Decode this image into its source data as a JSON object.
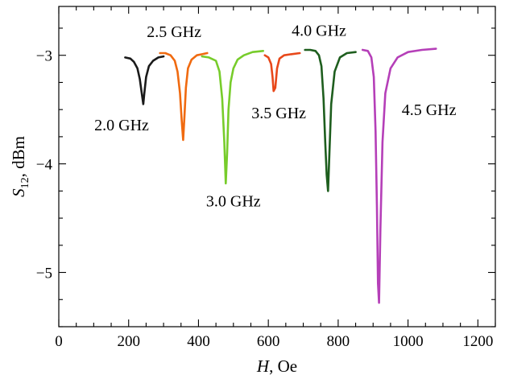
{
  "chart_data": {
    "type": "line",
    "xlabel": {
      "italic": "H",
      "rest": ", Oe"
    },
    "ylabel": {
      "italic": "S",
      "sub": "12",
      "rest": ", dBm"
    },
    "xlim": [
      0,
      1250
    ],
    "ylim": [
      -5.5,
      -2.55
    ],
    "xticks": [
      0,
      200,
      400,
      600,
      800,
      1000,
      1200
    ],
    "xtick_labels": [
      "0",
      "200",
      "400",
      "600",
      "800",
      "1000",
      "1200"
    ],
    "x_minor_step": 50,
    "yticks": [
      -5,
      -4,
      -3
    ],
    "ytick_labels": [
      "−5",
      "−4",
      "−3"
    ],
    "y_minor_step": 0.25,
    "grid": false,
    "legend": "none",
    "series": [
      {
        "name": "2.0 GHz",
        "color": "#1a1a1a",
        "x": [
          190,
          205,
          215,
          225,
          232,
          238,
          242,
          245,
          250,
          258,
          270,
          285,
          300
        ],
        "y": [
          -3.02,
          -3.03,
          -3.06,
          -3.12,
          -3.22,
          -3.36,
          -3.45,
          -3.35,
          -3.2,
          -3.1,
          -3.05,
          -3.02,
          -3.01
        ]
      },
      {
        "name": "2.5 GHz",
        "color": "#f06a10",
        "x": [
          290,
          305,
          320,
          332,
          340,
          347,
          352,
          356,
          360,
          364,
          370,
          380,
          395,
          410,
          425
        ],
        "y": [
          -2.98,
          -2.98,
          -3.0,
          -3.05,
          -3.15,
          -3.35,
          -3.6,
          -3.78,
          -3.55,
          -3.3,
          -3.12,
          -3.04,
          -3.0,
          -2.99,
          -2.98
        ]
      },
      {
        "name": "3.0 GHz",
        "color": "#77cc2b",
        "x": [
          410,
          430,
          450,
          460,
          468,
          474,
          478,
          482,
          486,
          492,
          500,
          512,
          530,
          555,
          585
        ],
        "y": [
          -3.01,
          -3.02,
          -3.05,
          -3.15,
          -3.4,
          -3.8,
          -4.18,
          -3.9,
          -3.5,
          -3.25,
          -3.12,
          -3.04,
          -3.0,
          -2.97,
          -2.96
        ]
      },
      {
        "name": "3.5 GHz",
        "color": "#e8481a",
        "x": [
          590,
          600,
          608,
          612,
          615,
          620,
          625,
          632,
          645,
          665,
          690
        ],
        "y": [
          -3.0,
          -3.02,
          -3.08,
          -3.2,
          -3.33,
          -3.3,
          -3.12,
          -3.03,
          -3.0,
          -2.99,
          -2.98
        ]
      },
      {
        "name": "4.0 GHz",
        "color": "#1e5e1e",
        "x": [
          705,
          720,
          735,
          745,
          752,
          758,
          763,
          767,
          771,
          775,
          780,
          790,
          805,
          825,
          850
        ],
        "y": [
          -2.95,
          -2.95,
          -2.96,
          -3.0,
          -3.1,
          -3.4,
          -3.8,
          -4.1,
          -4.25,
          -3.9,
          -3.45,
          -3.15,
          -3.02,
          -2.98,
          -2.97
        ]
      },
      {
        "name": "4.5 GHz",
        "color": "#b53fb8",
        "x": [
          870,
          885,
          895,
          902,
          907,
          911,
          914,
          917,
          921,
          927,
          935,
          950,
          970,
          1000,
          1040,
          1080
        ],
        "y": [
          -2.95,
          -2.96,
          -3.02,
          -3.2,
          -3.7,
          -4.4,
          -5.1,
          -5.28,
          -4.6,
          -3.8,
          -3.35,
          -3.12,
          -3.02,
          -2.97,
          -2.95,
          -2.94
        ]
      }
    ],
    "annotations": [
      {
        "text": "2.0 GHz",
        "x": 180,
        "y": -3.64
      },
      {
        "text": "2.5 GHz",
        "x": 330,
        "y": -2.78
      },
      {
        "text": "3.0 GHz",
        "x": 500,
        "y": -4.34
      },
      {
        "text": "3.5 GHz",
        "x": 630,
        "y": -3.53
      },
      {
        "text": "4.0 GHz",
        "x": 745,
        "y": -2.77
      },
      {
        "text": "4.5 GHz",
        "x": 1060,
        "y": -3.5
      }
    ]
  }
}
